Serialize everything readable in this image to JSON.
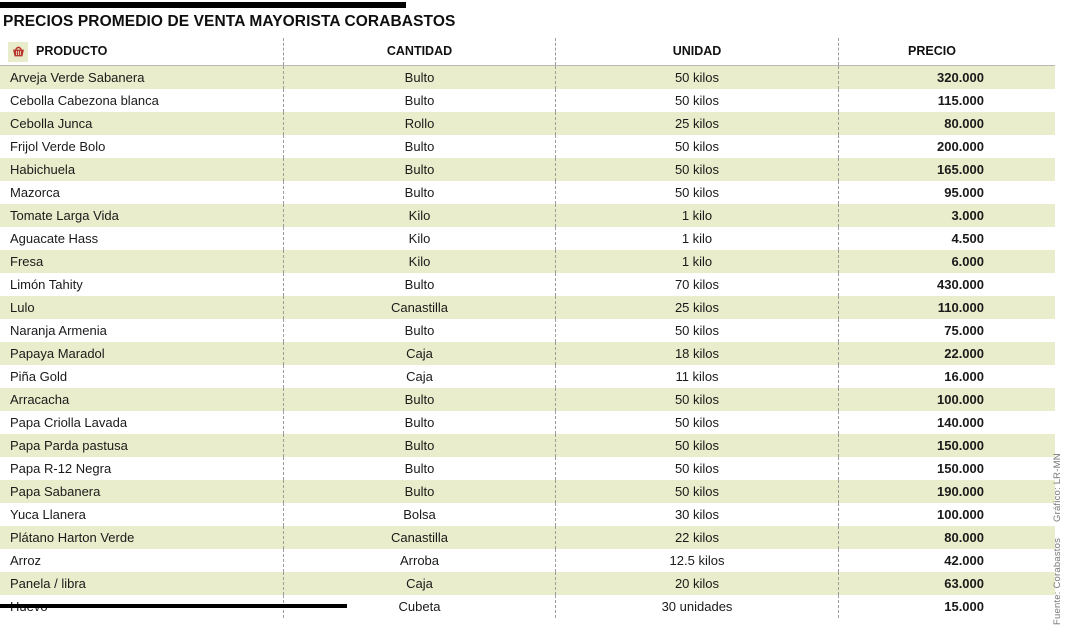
{
  "title": "PRECIOS PROMEDIO DE VENTA MAYORISTA CORABASTOS",
  "colors": {
    "row_shade": "#eaedcb",
    "basket_red": "#b7352c",
    "rule_black": "#000000",
    "dash_gray": "#9c9c9c"
  },
  "credits": {
    "grafico": "Gráfico: LR-MN",
    "fuente": "Fuente: Corabastos"
  },
  "chart_data": {
    "type": "table",
    "title": "PRECIOS PROMEDIO DE VENTA MAYORISTA CORABASTOS",
    "columns": [
      "PRODUCTO",
      "CANTIDAD",
      "UNIDAD",
      "PRECIO"
    ],
    "rows": [
      {
        "producto": "Arveja Verde Sabanera",
        "cantidad": "Bulto",
        "unidad": "50 kilos",
        "precio": "320.000"
      },
      {
        "producto": "Cebolla Cabezona blanca",
        "cantidad": "Bulto",
        "unidad": "50 kilos",
        "precio": "115.000"
      },
      {
        "producto": "Cebolla  Junca",
        "cantidad": "Rollo",
        "unidad": "25 kilos",
        "precio": "80.000"
      },
      {
        "producto": "Frijol Verde Bolo",
        "cantidad": "Bulto",
        "unidad": "50 kilos",
        "precio": "200.000"
      },
      {
        "producto": "Habichuela",
        "cantidad": "Bulto",
        "unidad": "50 kilos",
        "precio": "165.000"
      },
      {
        "producto": "Mazorca",
        "cantidad": "Bulto",
        "unidad": "50 kilos",
        "precio": "95.000"
      },
      {
        "producto": "Tomate Larga Vida",
        "cantidad": "Kilo",
        "unidad": "1 kilo",
        "precio": "3.000"
      },
      {
        "producto": "Aguacate Hass",
        "cantidad": "Kilo",
        "unidad": "1 kilo",
        "precio": "4.500"
      },
      {
        "producto": "Fresa",
        "cantidad": "Kilo",
        "unidad": "1 kilo",
        "precio": "6.000"
      },
      {
        "producto": "Limón Tahity",
        "cantidad": "Bulto",
        "unidad": "70 kilos",
        "precio": "430.000"
      },
      {
        "producto": "Lulo",
        "cantidad": "Canastilla",
        "unidad": "25 kilos",
        "precio": "110.000"
      },
      {
        "producto": "Naranja Armenia",
        "cantidad": "Bulto",
        "unidad": "50 kilos",
        "precio": "75.000"
      },
      {
        "producto": "Papaya Maradol",
        "cantidad": "Caja",
        "unidad": "18 kilos",
        "precio": "22.000"
      },
      {
        "producto": "Piña Gold",
        "cantidad": "Caja",
        "unidad": "11 kilos",
        "precio": "16.000"
      },
      {
        "producto": "Arracacha",
        "cantidad": "Bulto",
        "unidad": "50 kilos",
        "precio": "100.000"
      },
      {
        "producto": "Papa Criolla Lavada",
        "cantidad": "Bulto",
        "unidad": "50 kilos",
        "precio": "140.000"
      },
      {
        "producto": "Papa Parda pastusa",
        "cantidad": "Bulto",
        "unidad": "50 kilos",
        "precio": "150.000"
      },
      {
        "producto": "Papa  R-12 Negra",
        "cantidad": "Bulto",
        "unidad": "50 kilos",
        "precio": "150.000"
      },
      {
        "producto": "Papa Sabanera",
        "cantidad": "Bulto",
        "unidad": "50 kilos",
        "precio": "190.000"
      },
      {
        "producto": "Yuca Llanera",
        "cantidad": "Bolsa",
        "unidad": "30 kilos",
        "precio": "100.000"
      },
      {
        "producto": "Plátano Harton Verde",
        "cantidad": "Canastilla",
        "unidad": "22 kilos",
        "precio": "80.000"
      },
      {
        "producto": "Arroz",
        "cantidad": "Arroba",
        "unidad": "12.5 kilos",
        "precio": "42.000"
      },
      {
        "producto": "Panela / libra",
        "cantidad": "Caja",
        "unidad": "20 kilos",
        "precio": "63.000"
      },
      {
        "producto": "Huevo",
        "cantidad": "Cubeta",
        "unidad": "30 unidades",
        "precio": "15.000"
      }
    ]
  }
}
